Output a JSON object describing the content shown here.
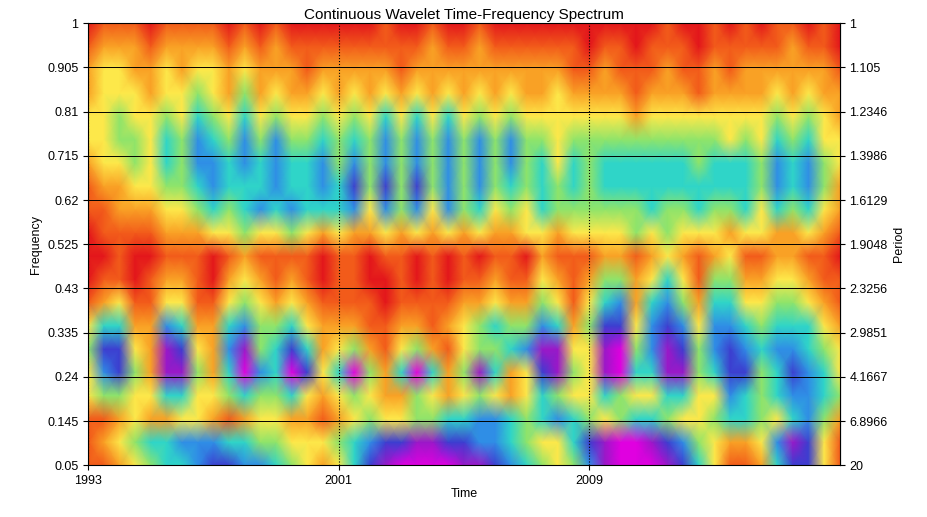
{
  "chart_data": {
    "type": "heatmap",
    "title": "Continuous Wavelet Time-Frequency Spectrum",
    "x_label": "Time",
    "y_label": "Frequency",
    "y2_label": "Period",
    "xlim": [
      1993,
      2017
    ],
    "xticks": [
      1993,
      2001,
      2009
    ],
    "ylim": [
      0.05,
      1
    ],
    "yticks": [
      0.05,
      0.145,
      0.24,
      0.335,
      0.43,
      0.525,
      0.62,
      0.715,
      0.81,
      0.905,
      1
    ],
    "y2ticks": [
      20,
      6.8966,
      4.1667,
      2.9851,
      2.3256,
      1.9048,
      1.6129,
      1.3986,
      1.2346,
      1.105,
      1
    ],
    "grid": true,
    "zlim": [
      0,
      9
    ],
    "x": [
      1993,
      1993.5,
      1994,
      1994.5,
      1995,
      1995.5,
      1996,
      1996.5,
      1997,
      1997.5,
      1998,
      1998.5,
      1999,
      1999.5,
      2000,
      2000.5,
      2001,
      2001.5,
      2002,
      2002.5,
      2003,
      2003.5,
      2004,
      2004.5,
      2005,
      2005.5,
      2006,
      2006.5,
      2007,
      2007.5,
      2008,
      2008.5,
      2009,
      2009.5,
      2010,
      2010.5,
      2011,
      2011.5,
      2012,
      2012.5,
      2013,
      2013.5,
      2014,
      2014.5,
      2015,
      2015.5,
      2016,
      2016.5,
      2017
    ],
    "y": [
      0.05,
      0.1,
      0.15,
      0.2,
      0.25,
      0.3,
      0.35,
      0.4,
      0.45,
      0.5,
      0.55,
      0.6,
      0.65,
      0.7,
      0.75,
      0.8,
      0.85,
      0.9,
      0.95,
      1.0
    ],
    "z": [
      [
        1,
        1,
        2,
        3,
        4,
        5,
        5,
        6,
        7,
        7,
        6,
        6,
        5,
        4,
        3,
        2,
        3,
        5,
        7,
        8,
        9,
        9,
        9,
        9,
        8,
        8,
        7,
        6,
        5,
        4,
        3,
        4,
        6,
        8,
        9,
        9,
        9,
        8,
        7,
        5,
        3,
        1,
        1,
        2,
        5,
        7,
        7,
        3,
        1
      ],
      [
        1,
        2,
        3,
        4,
        5,
        5,
        6,
        6,
        6,
        5,
        5,
        4,
        4,
        3,
        3,
        3,
        4,
        5,
        6,
        7,
        7,
        8,
        8,
        7,
        7,
        6,
        6,
        5,
        4,
        3,
        3,
        5,
        7,
        8,
        9,
        9,
        8,
        7,
        6,
        4,
        3,
        2,
        2,
        3,
        6,
        8,
        7,
        3,
        1
      ],
      [
        1,
        1,
        2,
        3,
        2,
        2,
        3,
        3,
        2,
        1,
        2,
        3,
        3,
        2,
        2,
        1,
        2,
        3,
        4,
        3,
        3,
        4,
        4,
        5,
        5,
        6,
        6,
        5,
        4,
        5,
        6,
        5,
        4,
        3,
        4,
        5,
        5,
        4,
        3,
        3,
        4,
        5,
        5,
        4,
        3,
        5,
        6,
        4,
        2
      ],
      [
        3,
        4,
        4,
        3,
        3,
        5,
        5,
        3,
        3,
        4,
        5,
        4,
        4,
        5,
        3,
        2,
        3,
        4,
        3,
        2,
        2,
        4,
        3,
        2,
        3,
        4,
        3,
        2,
        3,
        5,
        4,
        3,
        3,
        5,
        4,
        3,
        3,
        5,
        5,
        3,
        3,
        6,
        5,
        4,
        5,
        6,
        6,
        5,
        4
      ],
      [
        3,
        6,
        7,
        4,
        2,
        8,
        8,
        4,
        2,
        5,
        9,
        6,
        5,
        9,
        7,
        3,
        5,
        9,
        4,
        2,
        5,
        9,
        5,
        2,
        4,
        8,
        5,
        2,
        3,
        7,
        8,
        4,
        3,
        8,
        9,
        5,
        5,
        8,
        8,
        4,
        5,
        7,
        7,
        4,
        5,
        7,
        6,
        5,
        3
      ],
      [
        4,
        7,
        7,
        3,
        2,
        8,
        7,
        3,
        2,
        6,
        8,
        4,
        5,
        7,
        5,
        2,
        3,
        4,
        2,
        1,
        3,
        4,
        2,
        1,
        3,
        4,
        4,
        5,
        6,
        8,
        8,
        3,
        3,
        8,
        9,
        4,
        6,
        8,
        7,
        4,
        6,
        7,
        6,
        5,
        6,
        6,
        5,
        4,
        3
      ],
      [
        3,
        5,
        5,
        2,
        2,
        6,
        5,
        2,
        2,
        5,
        6,
        4,
        4,
        5,
        3,
        2,
        2,
        2,
        1,
        1,
        2,
        2,
        1,
        2,
        3,
        4,
        5,
        4,
        4,
        6,
        5,
        2,
        4,
        7,
        7,
        3,
        6,
        7,
        6,
        3,
        6,
        6,
        5,
        4,
        5,
        5,
        5,
        3,
        2
      ],
      [
        1,
        2,
        3,
        1,
        1,
        3,
        3,
        1,
        1,
        3,
        4,
        3,
        2,
        3,
        2,
        1,
        1,
        1,
        1,
        0,
        1,
        1,
        1,
        1,
        2,
        2,
        3,
        2,
        2,
        4,
        3,
        1,
        3,
        5,
        6,
        2,
        5,
        6,
        4,
        2,
        5,
        5,
        3,
        3,
        4,
        4,
        3,
        2,
        1
      ],
      [
        0,
        1,
        1,
        0,
        1,
        2,
        2,
        1,
        0,
        2,
        3,
        2,
        1,
        2,
        1,
        0,
        1,
        1,
        0,
        0,
        1,
        0,
        1,
        0,
        1,
        1,
        2,
        1,
        1,
        3,
        2,
        1,
        2,
        4,
        4,
        2,
        3,
        5,
        3,
        1,
        4,
        4,
        2,
        2,
        3,
        3,
        2,
        1,
        1
      ],
      [
        0,
        0,
        1,
        0,
        0,
        1,
        1,
        1,
        0,
        1,
        2,
        1,
        1,
        1,
        1,
        0,
        1,
        1,
        0,
        1,
        1,
        0,
        1,
        0,
        1,
        0,
        1,
        1,
        0,
        2,
        1,
        1,
        1,
        2,
        2,
        1,
        2,
        3,
        2,
        1,
        2,
        3,
        1,
        1,
        2,
        2,
        1,
        1,
        0
      ],
      [
        0,
        1,
        1,
        1,
        1,
        2,
        2,
        2,
        3,
        3,
        4,
        3,
        3,
        4,
        3,
        2,
        3,
        2,
        2,
        3,
        2,
        3,
        2,
        3,
        2,
        3,
        2,
        2,
        3,
        3,
        2,
        3,
        3,
        3,
        3,
        4,
        3,
        4,
        3,
        3,
        3,
        2,
        3,
        3,
        2,
        2,
        3,
        2,
        1
      ],
      [
        1,
        1,
        2,
        2,
        2,
        3,
        3,
        4,
        5,
        4,
        5,
        6,
        5,
        6,
        5,
        5,
        5,
        6,
        3,
        6,
        4,
        6,
        3,
        6,
        4,
        5,
        3,
        4,
        3,
        5,
        4,
        4,
        4,
        4,
        4,
        4,
        5,
        4,
        4,
        5,
        4,
        4,
        5,
        3,
        5,
        4,
        5,
        3,
        2
      ],
      [
        1,
        2,
        2,
        3,
        3,
        4,
        4,
        5,
        6,
        5,
        5,
        5,
        6,
        5,
        5,
        6,
        5,
        7,
        4,
        7,
        4,
        7,
        4,
        6,
        4,
        6,
        4,
        5,
        4,
        5,
        4,
        5,
        4,
        5,
        5,
        5,
        5,
        5,
        5,
        5,
        5,
        5,
        5,
        4,
        6,
        5,
        6,
        4,
        2
      ],
      [
        2,
        3,
        3,
        4,
        3,
        5,
        4,
        6,
        6,
        5,
        6,
        5,
        6,
        5,
        5,
        6,
        4,
        6,
        4,
        6,
        4,
        6,
        4,
        6,
        4,
        6,
        4,
        6,
        4,
        5,
        3,
        5,
        4,
        5,
        5,
        5,
        5,
        5,
        5,
        4,
        5,
        5,
        5,
        4,
        6,
        5,
        6,
        4,
        3
      ],
      [
        3,
        3,
        4,
        4,
        3,
        5,
        4,
        6,
        5,
        4,
        6,
        4,
        6,
        4,
        4,
        5,
        4,
        5,
        4,
        6,
        4,
        6,
        4,
        6,
        4,
        6,
        4,
        6,
        4,
        4,
        3,
        4,
        4,
        4,
        4,
        4,
        4,
        4,
        4,
        4,
        4,
        3,
        4,
        3,
        5,
        4,
        5,
        3,
        3
      ],
      [
        3,
        3,
        4,
        3,
        3,
        4,
        3,
        5,
        4,
        3,
        5,
        3,
        4,
        3,
        3,
        4,
        3,
        4,
        3,
        5,
        3,
        5,
        3,
        5,
        3,
        4,
        3,
        4,
        3,
        3,
        3,
        3,
        3,
        3,
        3,
        2,
        3,
        3,
        3,
        3,
        3,
        3,
        3,
        3,
        4,
        3,
        4,
        3,
        2
      ],
      [
        2,
        3,
        3,
        3,
        2,
        3,
        3,
        4,
        3,
        2,
        4,
        2,
        3,
        2,
        2,
        3,
        2,
        3,
        2,
        3,
        2,
        3,
        2,
        3,
        2,
        3,
        2,
        3,
        2,
        2,
        3,
        2,
        2,
        2,
        2,
        1,
        2,
        2,
        2,
        1,
        2,
        2,
        2,
        2,
        3,
        2,
        3,
        2,
        2
      ],
      [
        2,
        3,
        3,
        2,
        2,
        3,
        2,
        3,
        3,
        2,
        3,
        2,
        2,
        2,
        1,
        2,
        2,
        2,
        2,
        2,
        1,
        2,
        2,
        2,
        2,
        2,
        2,
        2,
        2,
        2,
        2,
        1,
        1,
        2,
        1,
        1,
        1,
        2,
        1,
        1,
        2,
        1,
        2,
        2,
        2,
        2,
        2,
        2,
        1
      ],
      [
        1,
        2,
        2,
        2,
        1,
        2,
        2,
        2,
        2,
        1,
        2,
        1,
        2,
        1,
        1,
        1,
        1,
        1,
        1,
        1,
        1,
        1,
        2,
        1,
        1,
        2,
        1,
        1,
        1,
        1,
        1,
        1,
        0,
        1,
        1,
        0,
        1,
        1,
        1,
        0,
        1,
        1,
        1,
        1,
        1,
        2,
        1,
        1,
        0
      ],
      [
        0,
        1,
        1,
        1,
        0,
        1,
        1,
        1,
        1,
        0,
        1,
        0,
        1,
        0,
        0,
        0,
        0,
        0,
        0,
        1,
        0,
        0,
        1,
        0,
        0,
        1,
        0,
        0,
        0,
        0,
        0,
        0,
        0,
        0,
        0,
        0,
        0,
        1,
        0,
        0,
        1,
        0,
        1,
        0,
        1,
        1,
        0,
        1,
        0
      ]
    ]
  }
}
